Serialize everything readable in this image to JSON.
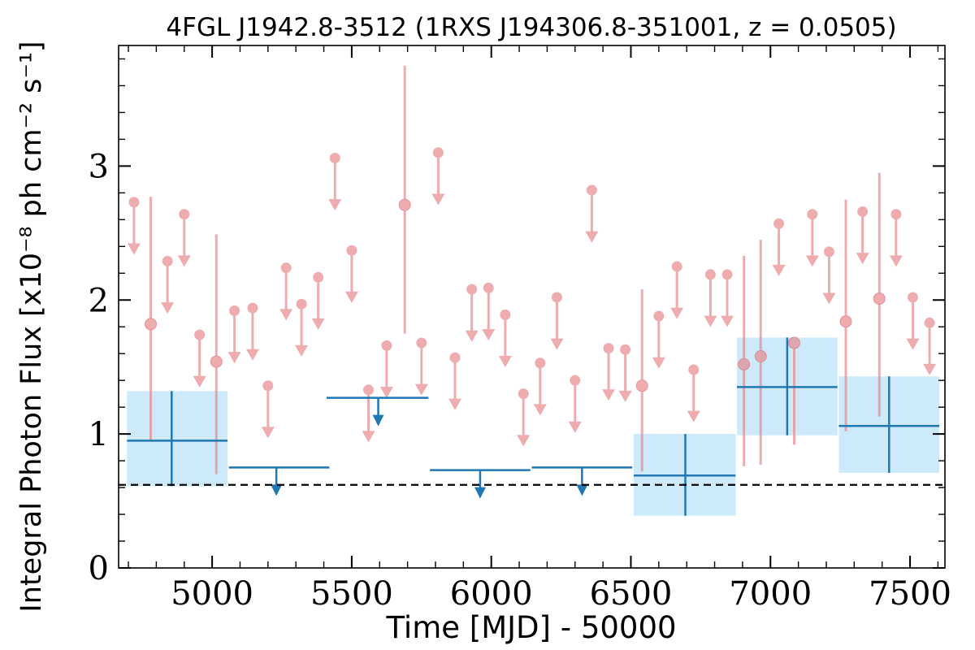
{
  "chart_data": {
    "type": "scatter",
    "title": "4FGL J1942.8-3512 (1RXS J194306.8-351001, z = 0.0505)",
    "xlabel": "Time [MJD] - 50000",
    "ylabel": "Integral Photon Flux [x10⁻⁸ ph cm⁻² s⁻¹]",
    "xlim": [
      4665,
      7625
    ],
    "ylim": [
      0,
      3.9
    ],
    "x_ticks": [
      5000,
      5500,
      6000,
      6500,
      7000,
      7500
    ],
    "y_ticks": [
      0,
      1,
      2,
      3
    ],
    "reference_level": 0.62,
    "colors": {
      "fine_points": "#e8898e",
      "coarse_bins": "#1f77b4",
      "coarse_band": "#cdeafb",
      "reference_line": "#000000"
    },
    "series": [
      {
        "kind": "fine-detections",
        "points": [
          {
            "x": 4780,
            "y": 1.82,
            "err_lo": 0.87,
            "err_hi": 0.95
          },
          {
            "x": 5015,
            "y": 1.54,
            "err_lo": 0.84,
            "err_hi": 0.95
          },
          {
            "x": 5690,
            "y": 2.71,
            "err_lo": 0.96,
            "err_hi": 1.04
          },
          {
            "x": 6540,
            "y": 1.36,
            "err_lo": 0.64,
            "err_hi": 0.72
          },
          {
            "x": 6905,
            "y": 1.52,
            "err_lo": 0.76,
            "err_hi": 0.81
          },
          {
            "x": 6965,
            "y": 1.58,
            "err_lo": 0.81,
            "err_hi": 0.87
          },
          {
            "x": 7085,
            "y": 1.68,
            "err_lo": 0.76,
            "err_hi": 0.0
          },
          {
            "x": 7270,
            "y": 1.84,
            "err_lo": 0.82,
            "err_hi": 0.91
          },
          {
            "x": 7390,
            "y": 2.01,
            "err_lo": 0.88,
            "err_hi": 0.94
          }
        ]
      },
      {
        "kind": "fine-upper-limits",
        "points": [
          {
            "x": 4720,
            "y": 2.73
          },
          {
            "x": 4840,
            "y": 2.29
          },
          {
            "x": 4900,
            "y": 2.64
          },
          {
            "x": 4955,
            "y": 1.74
          },
          {
            "x": 5080,
            "y": 1.92
          },
          {
            "x": 5145,
            "y": 1.94
          },
          {
            "x": 5200,
            "y": 1.36
          },
          {
            "x": 5265,
            "y": 2.24
          },
          {
            "x": 5320,
            "y": 1.97
          },
          {
            "x": 5380,
            "y": 2.17
          },
          {
            "x": 5440,
            "y": 3.06
          },
          {
            "x": 5500,
            "y": 2.37
          },
          {
            "x": 5560,
            "y": 1.33
          },
          {
            "x": 5625,
            "y": 1.66
          },
          {
            "x": 5750,
            "y": 1.68
          },
          {
            "x": 5810,
            "y": 3.1
          },
          {
            "x": 5870,
            "y": 1.57
          },
          {
            "x": 5930,
            "y": 2.08
          },
          {
            "x": 5990,
            "y": 2.09
          },
          {
            "x": 6050,
            "y": 1.89
          },
          {
            "x": 6115,
            "y": 1.3
          },
          {
            "x": 6175,
            "y": 1.53
          },
          {
            "x": 6235,
            "y": 2.02
          },
          {
            "x": 6300,
            "y": 1.4
          },
          {
            "x": 6360,
            "y": 2.82
          },
          {
            "x": 6420,
            "y": 1.64
          },
          {
            "x": 6480,
            "y": 1.63
          },
          {
            "x": 6600,
            "y": 1.88
          },
          {
            "x": 6665,
            "y": 2.25
          },
          {
            "x": 6725,
            "y": 1.48
          },
          {
            "x": 6785,
            "y": 2.19
          },
          {
            "x": 6845,
            "y": 2.19
          },
          {
            "x": 7030,
            "y": 2.57
          },
          {
            "x": 7150,
            "y": 2.64
          },
          {
            "x": 7210,
            "y": 2.36
          },
          {
            "x": 7330,
            "y": 2.66
          },
          {
            "x": 7450,
            "y": 2.64
          },
          {
            "x": 7510,
            "y": 2.02
          },
          {
            "x": 7570,
            "y": 1.83
          }
        ]
      },
      {
        "kind": "coarse-detections",
        "bins": [
          {
            "x_start": 4695,
            "x_end": 5055,
            "x_center": 4855,
            "y": 0.95,
            "y_lo": 0.61,
            "y_hi": 1.32
          },
          {
            "x_start": 6510,
            "x_end": 6875,
            "x_center": 6695,
            "y": 0.69,
            "y_lo": 0.39,
            "y_hi": 1.0
          },
          {
            "x_start": 6880,
            "x_end": 7240,
            "x_center": 7060,
            "y": 1.35,
            "y_lo": 0.99,
            "y_hi": 1.72
          },
          {
            "x_start": 7245,
            "x_end": 7605,
            "x_center": 7425,
            "y": 1.06,
            "y_lo": 0.71,
            "y_hi": 1.43
          }
        ]
      },
      {
        "kind": "coarse-upper-limits",
        "bins": [
          {
            "x_start": 5060,
            "x_end": 5420,
            "x_center": 5230,
            "y": 0.75
          },
          {
            "x_start": 5410,
            "x_end": 5775,
            "x_center": 5595,
            "y": 1.27
          },
          {
            "x_start": 5780,
            "x_end": 6140,
            "x_center": 5960,
            "y": 0.73
          },
          {
            "x_start": 6145,
            "x_end": 6505,
            "x_center": 6325,
            "y": 0.75
          }
        ]
      }
    ]
  }
}
